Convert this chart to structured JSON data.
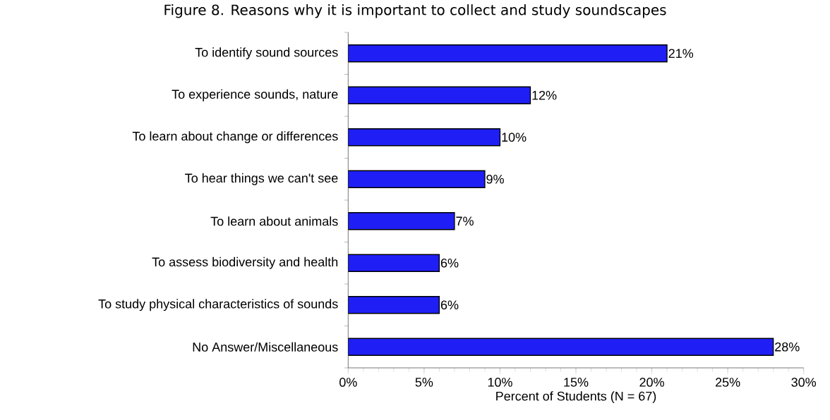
{
  "chart_data": {
    "type": "bar",
    "orientation": "horizontal",
    "title": "Figure 8. Reasons why it is important to collect and study soundscapes",
    "xlabel": "Percent of Students (N = 67)",
    "categories": [
      "To identify sound sources",
      "To experience sounds, nature",
      "To learn about change or differences",
      "To hear things we can't see",
      "To learn about animals",
      "To assess biodiversity and health",
      "To study physical characteristics of sounds",
      "No Answer/Miscellaneous"
    ],
    "values": [
      21,
      12,
      10,
      9,
      7,
      6,
      6,
      28
    ],
    "value_labels": [
      "21%",
      "12%",
      "10%",
      "9%",
      "7%",
      "6%",
      "6%",
      "28%"
    ],
    "color": "#1f1ff5",
    "xlim": [
      0,
      30
    ],
    "xticks": [
      {
        "value": 0,
        "label": "0%"
      },
      {
        "value": 5,
        "label": "5%"
      },
      {
        "value": 10,
        "label": "10%"
      },
      {
        "value": 15,
        "label": "15%"
      },
      {
        "value": 20,
        "label": "20%"
      },
      {
        "value": 25,
        "label": "25%"
      },
      {
        "value": 30,
        "label": "30%"
      }
    ]
  }
}
